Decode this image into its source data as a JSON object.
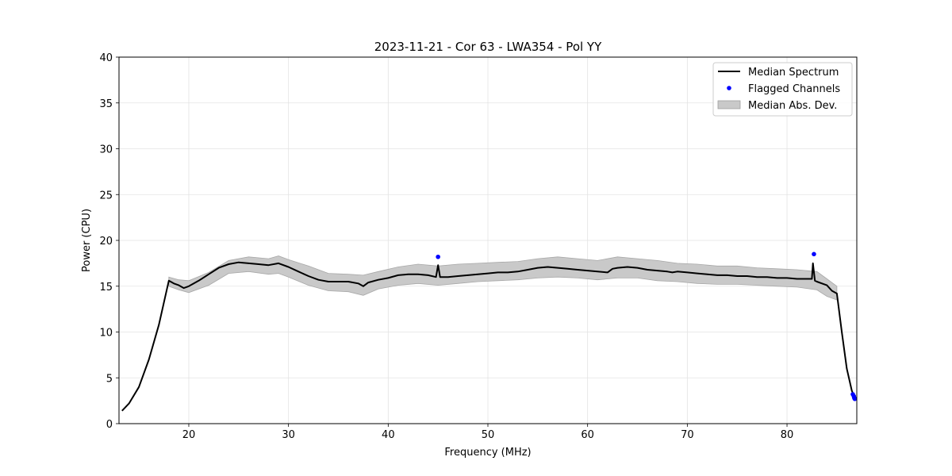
{
  "chart_data": {
    "type": "line",
    "title": "2023-11-21 - Cor 63 - LWA354 - Pol YY",
    "xlabel": "Frequency (MHz)",
    "ylabel": "Power (CPU)",
    "xlim": [
      13,
      87
    ],
    "ylim": [
      0,
      40
    ],
    "xticks": [
      20,
      30,
      40,
      50,
      60,
      70,
      80
    ],
    "yticks": [
      0,
      5,
      10,
      15,
      20,
      25,
      30,
      35,
      40
    ],
    "grid": true,
    "legend_position": "top-right",
    "legend": [
      "Median Spectrum",
      "Flagged Channels",
      "Median Abs. Dev."
    ],
    "series": [
      {
        "name": "Median Spectrum",
        "kind": "line",
        "color": "#000000",
        "x": [
          13.3,
          14,
          15,
          16,
          17,
          18,
          18.5,
          19,
          19.5,
          20,
          21,
          22,
          23,
          24,
          25,
          26,
          27,
          28,
          29,
          30,
          31,
          32,
          33,
          34,
          35,
          36,
          37,
          37.5,
          38,
          39,
          40,
          41,
          42,
          43,
          44,
          44.8,
          45,
          45.2,
          46,
          47,
          48,
          49,
          50,
          51,
          52,
          53,
          54,
          55,
          56,
          57,
          58,
          59,
          60,
          61,
          62,
          62.5,
          63,
          64,
          65,
          66,
          67,
          68,
          68.5,
          69,
          70,
          71,
          72,
          73,
          74,
          75,
          76,
          77,
          78,
          79,
          80,
          81,
          82,
          82.5,
          82.6,
          82.8,
          83,
          84,
          84.5,
          85,
          85.5,
          86,
          86.5,
          86.8
        ],
        "y": [
          1.4,
          2.2,
          4.0,
          7.0,
          10.8,
          15.6,
          15.3,
          15.1,
          14.8,
          15.0,
          15.6,
          16.3,
          17.0,
          17.4,
          17.6,
          17.5,
          17.4,
          17.3,
          17.5,
          17.1,
          16.6,
          16.1,
          15.7,
          15.5,
          15.5,
          15.5,
          15.3,
          15.0,
          15.4,
          15.7,
          15.9,
          16.2,
          16.3,
          16.3,
          16.2,
          16.0,
          17.3,
          16.0,
          16.0,
          16.1,
          16.2,
          16.3,
          16.4,
          16.5,
          16.5,
          16.6,
          16.8,
          17.0,
          17.1,
          17.0,
          16.9,
          16.8,
          16.7,
          16.6,
          16.5,
          16.9,
          17.0,
          17.1,
          17.0,
          16.8,
          16.7,
          16.6,
          16.5,
          16.6,
          16.5,
          16.4,
          16.3,
          16.2,
          16.2,
          16.1,
          16.1,
          16.0,
          16.0,
          15.9,
          15.9,
          15.8,
          15.8,
          15.8,
          17.5,
          15.6,
          15.5,
          15.1,
          14.5,
          14.2,
          10.0,
          6.0,
          3.6,
          2.8
        ]
      },
      {
        "name": "Median Abs. Dev.",
        "kind": "band",
        "color": "#c9c9c9",
        "x": [
          18,
          19,
          20,
          22,
          24,
          26,
          28,
          29,
          30,
          32,
          34,
          36,
          37.5,
          39,
          41,
          43,
          45,
          47,
          49,
          51,
          53,
          55,
          57,
          59,
          61,
          63,
          65,
          67,
          69,
          71,
          73,
          75,
          77,
          79,
          81,
          83,
          84,
          85
        ],
        "lower": [
          15.0,
          14.6,
          14.3,
          15.1,
          16.4,
          16.6,
          16.3,
          16.4,
          16.0,
          15.1,
          14.5,
          14.4,
          14.0,
          14.7,
          15.1,
          15.3,
          15.1,
          15.3,
          15.5,
          15.6,
          15.7,
          15.9,
          16.0,
          15.9,
          15.7,
          15.9,
          15.9,
          15.6,
          15.5,
          15.3,
          15.2,
          15.2,
          15.1,
          15.0,
          14.9,
          14.6,
          13.9,
          13.5
        ],
        "upper": [
          16.0,
          15.7,
          15.6,
          16.5,
          17.8,
          18.2,
          18.0,
          18.3,
          17.9,
          17.2,
          16.4,
          16.3,
          16.2,
          16.6,
          17.1,
          17.4,
          17.2,
          17.4,
          17.5,
          17.6,
          17.7,
          18.0,
          18.2,
          18.0,
          17.8,
          18.2,
          18.0,
          17.8,
          17.5,
          17.4,
          17.2,
          17.2,
          17.0,
          16.9,
          16.8,
          16.6,
          15.8,
          15.0
        ]
      },
      {
        "name": "Flagged Channels",
        "kind": "scatter",
        "color": "#0000ff",
        "x": [
          45.0,
          82.7,
          86.6,
          86.7,
          86.75,
          86.8
        ],
        "y": [
          18.2,
          18.5,
          3.2,
          3.0,
          2.8,
          2.7
        ]
      }
    ]
  }
}
